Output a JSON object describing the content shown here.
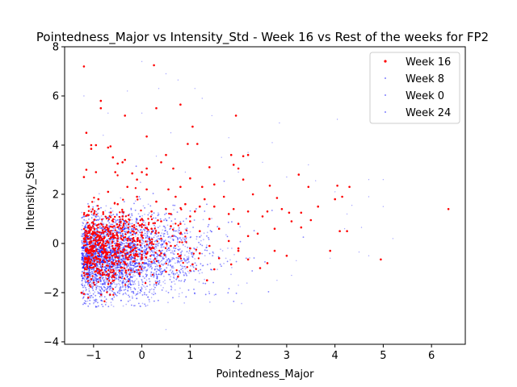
{
  "chart_data": {
    "type": "scatter",
    "title": "Pointedness_Major vs Intensity_Std - Week 16 vs Rest of the weeks for FP2",
    "xlabel": "Pointedness_Major",
    "ylabel": "Intensity_Std",
    "xlim": [
      -1.6,
      6.7
    ],
    "ylim": [
      -4.1,
      8.0
    ],
    "xticks": [
      -1,
      0,
      1,
      2,
      3,
      4,
      5,
      6
    ],
    "yticks": [
      -4,
      -2,
      0,
      2,
      4,
      6,
      8
    ],
    "xtick_labels": [
      "−1",
      "0",
      "1",
      "2",
      "3",
      "4",
      "5",
      "6"
    ],
    "ytick_labels": [
      "−4",
      "−2",
      "0",
      "2",
      "4",
      "6",
      "8"
    ],
    "grid": false,
    "legend_position": "top-right",
    "series": [
      {
        "name": "Week 16",
        "color": "#ff0000",
        "opacity": 1.0,
        "size": 1.3,
        "points": [
          [
            -1.2,
            7.2
          ],
          [
            0.25,
            7.25
          ],
          [
            -0.85,
            5.8
          ],
          [
            -0.85,
            5.5
          ],
          [
            0.3,
            5.5
          ],
          [
            0.8,
            5.65
          ],
          [
            -0.35,
            5.2
          ],
          [
            1.95,
            5.2
          ],
          [
            0.1,
            4.35
          ],
          [
            1.05,
            4.75
          ],
          [
            -1.15,
            4.5
          ],
          [
            -1.05,
            4.0
          ],
          [
            -0.95,
            4.0
          ],
          [
            -1.05,
            3.85
          ],
          [
            -0.7,
            3.9
          ],
          [
            -0.65,
            3.95
          ],
          [
            -0.6,
            3.5
          ],
          [
            0.95,
            4.05
          ],
          [
            1.15,
            4.05
          ],
          [
            0.5,
            3.6
          ],
          [
            1.85,
            3.6
          ],
          [
            2.2,
            3.6
          ],
          [
            2.1,
            3.55
          ],
          [
            -0.4,
            3.3
          ],
          [
            -0.35,
            3.4
          ],
          [
            -0.5,
            3.25
          ],
          [
            0.1,
            3.05
          ],
          [
            0.4,
            3.3
          ],
          [
            1.9,
            3.2
          ],
          [
            2.0,
            3.05
          ],
          [
            -1.15,
            3.0
          ],
          [
            -0.95,
            2.9
          ],
          [
            -0.55,
            2.9
          ],
          [
            -0.2,
            2.85
          ],
          [
            0.0,
            2.9
          ],
          [
            0.1,
            2.8
          ],
          [
            0.65,
            3.05
          ],
          [
            1.4,
            3.1
          ],
          [
            3.25,
            2.8
          ],
          [
            2.1,
            2.6
          ],
          [
            -1.2,
            2.7
          ],
          [
            -0.1,
            2.6
          ],
          [
            0.55,
            2.2
          ],
          [
            1.0,
            2.65
          ],
          [
            0.8,
            2.3
          ],
          [
            1.25,
            2.3
          ],
          [
            1.5,
            2.4
          ],
          [
            2.3,
            2.0
          ],
          [
            2.65,
            2.35
          ],
          [
            3.45,
            2.3
          ],
          [
            4.05,
            2.35
          ],
          [
            4.3,
            2.3
          ],
          [
            4.15,
            1.9
          ],
          [
            3.65,
            1.5
          ],
          [
            4.0,
            1.8
          ],
          [
            6.35,
            1.4
          ],
          [
            4.1,
            0.5
          ],
          [
            4.25,
            0.5
          ],
          [
            3.9,
            -0.3
          ],
          [
            4.95,
            -0.65
          ],
          [
            -1.25,
            -2.0
          ],
          [
            -1.2,
            -2.05
          ],
          [
            2.8,
            1.85
          ],
          [
            2.9,
            1.4
          ],
          [
            3.05,
            1.25
          ],
          [
            3.3,
            1.25
          ],
          [
            2.6,
            1.3
          ],
          [
            2.5,
            1.1
          ],
          [
            3.1,
            0.9
          ],
          [
            3.5,
            0.95
          ],
          [
            2.75,
            0.6
          ],
          [
            3.3,
            0.65
          ],
          [
            3.0,
            -0.5
          ],
          [
            2.75,
            -0.3
          ],
          [
            2.6,
            -0.8
          ],
          [
            2.45,
            -1.0
          ],
          [
            2.2,
            -0.65
          ],
          [
            2.0,
            -0.3
          ],
          [
            1.85,
            -0.85
          ],
          [
            1.5,
            -1.05
          ],
          [
            1.35,
            -1.5
          ],
          [
            1.05,
            -0.85
          ],
          [
            0.75,
            -1.35
          ],
          [
            0.5,
            -1.15
          ],
          [
            0.2,
            -0.75
          ],
          [
            -0.05,
            -1.2
          ],
          [
            -0.35,
            -0.8
          ],
          [
            -0.6,
            -1.3
          ],
          [
            -0.85,
            -1.1
          ],
          [
            -1.05,
            -1.45
          ],
          [
            -1.2,
            -1.2
          ],
          [
            -1.15,
            -0.6
          ],
          [
            -1.0,
            -0.3
          ],
          [
            -0.8,
            0.1
          ],
          [
            -0.6,
            0.4
          ],
          [
            -0.4,
            0.15
          ],
          [
            -0.2,
            0.5
          ],
          [
            0.0,
            0.3
          ],
          [
            0.2,
            0.6
          ],
          [
            0.4,
            0.2
          ],
          [
            0.6,
            0.7
          ],
          [
            0.8,
            0.4
          ],
          [
            1.0,
            0.9
          ],
          [
            1.2,
            0.5
          ],
          [
            1.4,
            1.0
          ],
          [
            1.6,
            0.6
          ],
          [
            1.8,
            1.2
          ],
          [
            2.0,
            0.8
          ],
          [
            2.2,
            1.3
          ],
          [
            2.4,
            0.4
          ],
          [
            -1.1,
            1.5
          ],
          [
            -0.9,
            1.8
          ],
          [
            -0.7,
            2.1
          ],
          [
            -0.5,
            1.6
          ],
          [
            -0.3,
            2.3
          ],
          [
            -0.1,
            1.9
          ],
          [
            0.1,
            2.2
          ],
          [
            0.3,
            1.7
          ],
          [
            0.5,
            1.4
          ],
          [
            0.7,
            1.9
          ],
          [
            0.9,
            1.6
          ],
          [
            1.1,
            1.3
          ],
          [
            1.3,
            1.8
          ],
          [
            1.5,
            1.5
          ],
          [
            1.7,
            1.9
          ],
          [
            1.9,
            1.4
          ],
          [
            -1.0,
            0.8
          ],
          [
            -0.8,
            1.2
          ],
          [
            -0.6,
            0.9
          ],
          [
            -0.4,
            1.1
          ],
          [
            -0.2,
            0.7
          ],
          [
            0.0,
            1.0
          ],
          [
            0.2,
            1.3
          ],
          [
            0.4,
            0.9
          ],
          [
            0.6,
            1.2
          ],
          [
            0.8,
            0.8
          ],
          [
            1.0,
            1.1
          ],
          [
            1.2,
            1.5
          ],
          [
            -1.2,
            0.2
          ],
          [
            -1.0,
            -0.1
          ],
          [
            -0.8,
            -0.4
          ],
          [
            -0.6,
            -0.2
          ],
          [
            -0.4,
            -0.5
          ],
          [
            -0.2,
            -0.3
          ],
          [
            0.0,
            -0.6
          ],
          [
            0.2,
            -0.2
          ],
          [
            0.4,
            -0.4
          ],
          [
            0.6,
            -0.1
          ],
          [
            0.8,
            -0.5
          ],
          [
            1.0,
            -0.2
          ],
          [
            1.2,
            -0.4
          ],
          [
            1.4,
            -0.1
          ],
          [
            1.6,
            -0.6
          ],
          [
            1.8,
            0.1
          ],
          [
            2.0,
            -0.2
          ],
          [
            2.2,
            0.3
          ]
        ]
      },
      {
        "name": "Week 8",
        "color": "#0000ff",
        "opacity": 0.35,
        "size": 0.7,
        "points": [
          [
            -1.2,
            6.0
          ],
          [
            0.0,
            7.4
          ],
          [
            0.5,
            6.9
          ],
          [
            0.35,
            6.3
          ],
          [
            -0.3,
            6.2
          ],
          [
            1.1,
            6.3
          ],
          [
            0.75,
            6.65
          ],
          [
            -0.7,
            5.3
          ],
          [
            1.25,
            5.9
          ],
          [
            0.0,
            5.3
          ],
          [
            1.45,
            5.2
          ],
          [
            4.05,
            5.05
          ],
          [
            -0.8,
            4.4
          ],
          [
            2.85,
            4.9
          ],
          [
            1.8,
            4.3
          ],
          [
            2.7,
            4.1
          ],
          [
            0.6,
            4.5
          ],
          [
            0.3,
            3.55
          ],
          [
            2.2,
            3.7
          ],
          [
            1.65,
            3.5
          ],
          [
            2.5,
            3.3
          ],
          [
            3.45,
            3.2
          ],
          [
            2.0,
            2.9
          ],
          [
            0.9,
            2.9
          ],
          [
            3.0,
            2.7
          ],
          [
            4.7,
            2.6
          ],
          [
            5.0,
            2.6
          ],
          [
            3.6,
            2.55
          ],
          [
            4.0,
            2.1
          ],
          [
            4.7,
            1.9
          ],
          [
            4.35,
            1.55
          ],
          [
            5.0,
            1.5
          ],
          [
            4.25,
            1.2
          ],
          [
            4.2,
            0.6
          ],
          [
            4.55,
            0.65
          ],
          [
            5.2,
            0.2
          ],
          [
            4.5,
            -0.35
          ],
          [
            4.7,
            -0.5
          ],
          [
            3.9,
            -0.6
          ],
          [
            3.2,
            -0.7
          ],
          [
            2.8,
            -1.5
          ],
          [
            3.1,
            -1.3
          ],
          [
            2.0,
            -1.7
          ],
          [
            0.5,
            -3.5
          ],
          [
            -1.0,
            -2.45
          ],
          [
            -0.6,
            -2.3
          ],
          [
            0.2,
            -2.2
          ],
          [
            1.5,
            -2.1
          ]
        ]
      },
      {
        "name": "Week 0",
        "color": "#0000ff",
        "opacity": 0.35,
        "size": 0.7,
        "points": []
      },
      {
        "name": "Week 24",
        "color": "#0000ff",
        "opacity": 0.35,
        "size": 0.7,
        "points": []
      }
    ]
  }
}
